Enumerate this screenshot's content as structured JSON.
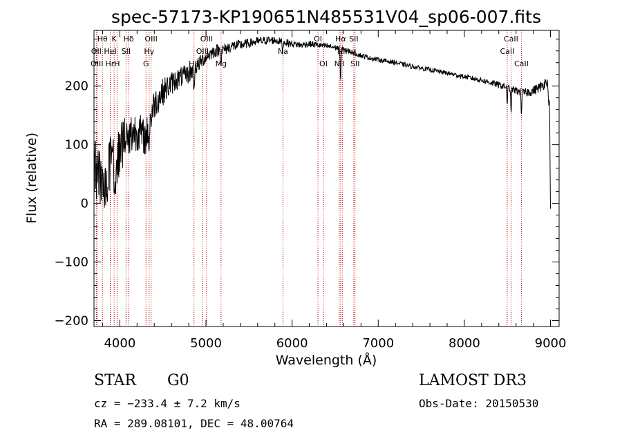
{
  "chart_data": {
    "type": "line",
    "title": "spec-57173-KP190651N485531V04_sp06-007.fits",
    "xlabel": "Wavelength (Å)",
    "ylabel": "Flux (relative)",
    "xlim": [
      3700,
      9100
    ],
    "ylim": [
      -210,
      295
    ],
    "x_ticks": [
      4000,
      5000,
      6000,
      7000,
      8000,
      9000
    ],
    "x_tick_labels": [
      "4000",
      "5000",
      "6000",
      "7000",
      "8000",
      "9000"
    ],
    "y_ticks": [
      -200,
      -100,
      0,
      100,
      200
    ],
    "y_tick_labels": [
      "−200",
      "−100",
      "0",
      "100",
      "200"
    ],
    "series": [
      {
        "name": "spectrum",
        "continuum": [
          [
            3700,
            60
          ],
          [
            3800,
            20
          ],
          [
            3850,
            40
          ],
          [
            3900,
            70
          ],
          [
            3950,
            55
          ],
          [
            4000,
            90
          ],
          [
            4100,
            115
          ],
          [
            4200,
            125
          ],
          [
            4300,
            110
          ],
          [
            4400,
            170
          ],
          [
            4500,
            190
          ],
          [
            4600,
            205
          ],
          [
            4700,
            215
          ],
          [
            4800,
            220
          ],
          [
            4900,
            235
          ],
          [
            5000,
            250
          ],
          [
            5100,
            260
          ],
          [
            5200,
            262
          ],
          [
            5300,
            268
          ],
          [
            5400,
            270
          ],
          [
            5500,
            273
          ],
          [
            5600,
            276
          ],
          [
            5700,
            278
          ],
          [
            5800,
            278
          ],
          [
            5900,
            275
          ],
          [
            6000,
            272
          ],
          [
            6100,
            270
          ],
          [
            6200,
            272
          ],
          [
            6300,
            270
          ],
          [
            6400,
            268
          ],
          [
            6500,
            266
          ],
          [
            6600,
            262
          ],
          [
            6700,
            258
          ],
          [
            6800,
            252
          ],
          [
            6900,
            248
          ],
          [
            7000,
            245
          ],
          [
            7200,
            240
          ],
          [
            7400,
            233
          ],
          [
            7600,
            228
          ],
          [
            7800,
            222
          ],
          [
            8000,
            216
          ],
          [
            8200,
            210
          ],
          [
            8400,
            202
          ],
          [
            8500,
            198
          ],
          [
            8600,
            192
          ],
          [
            8700,
            188
          ],
          [
            8800,
            192
          ],
          [
            8900,
            200
          ],
          [
            8960,
            210
          ],
          [
            8990,
            160
          ],
          [
            9000,
            0
          ]
        ],
        "absorption_features": [
          [
            4340,
            40
          ],
          [
            4861,
            45
          ],
          [
            5175,
            25
          ],
          [
            5890,
            18
          ],
          [
            6563,
            55
          ],
          [
            8498,
            30
          ],
          [
            8542,
            45
          ],
          [
            8662,
            35
          ]
        ],
        "noise_amplitude": [
          [
            3700,
            60
          ],
          [
            4000,
            45
          ],
          [
            4300,
            30
          ],
          [
            4600,
            20
          ],
          [
            5000,
            12
          ],
          [
            5500,
            8
          ],
          [
            6000,
            6
          ],
          [
            7000,
            4
          ],
          [
            8000,
            4
          ],
          [
            8500,
            6
          ],
          [
            9000,
            10
          ]
        ],
        "noise_seed": 57173
      }
    ],
    "lines": [
      {
        "wavelength": 3798,
        "labels": [
          "Hθ"
        ],
        "row": 1
      },
      {
        "wavelength": 3727,
        "labels": [
          "OII"
        ],
        "row": 2
      },
      {
        "wavelength": 3735,
        "labels": [
          "OIII"
        ],
        "row": 3
      },
      {
        "wavelength": 3889,
        "labels": [
          "Hε"
        ],
        "row": 3
      },
      {
        "wavelength": 3934,
        "labels": [
          "K"
        ],
        "row": 1
      },
      {
        "wavelength": 3968,
        "labels": [
          "H"
        ],
        "row": 3
      },
      {
        "wavelength": 3889,
        "labels": [
          "HeI"
        ],
        "row": 2
      },
      {
        "wavelength": 4072,
        "labels": [
          "SII"
        ],
        "row": 2
      },
      {
        "wavelength": 4102,
        "labels": [
          "Hδ"
        ],
        "row": 1
      },
      {
        "wavelength": 4304,
        "labels": [
          "G"
        ],
        "row": 3
      },
      {
        "wavelength": 4340,
        "labels": [
          "Hγ"
        ],
        "row": 2
      },
      {
        "wavelength": 4363,
        "labels": [
          "OIII"
        ],
        "row": 1
      },
      {
        "wavelength": 4861,
        "labels": [
          "Hβ"
        ],
        "row": 3
      },
      {
        "wavelength": 4959,
        "labels": [
          "OIII"
        ],
        "row": 2
      },
      {
        "wavelength": 5007,
        "labels": [
          "OIII"
        ],
        "row": 1
      },
      {
        "wavelength": 5175,
        "labels": [
          "Mg"
        ],
        "row": 3
      },
      {
        "wavelength": 5894,
        "labels": [
          "Na"
        ],
        "row": 2
      },
      {
        "wavelength": 6300,
        "labels": [
          "OI"
        ],
        "row": 1
      },
      {
        "wavelength": 6364,
        "labels": [
          "OI"
        ],
        "row": 3
      },
      {
        "wavelength": 6548,
        "labels": [
          "NII"
        ],
        "row": 3
      },
      {
        "wavelength": 6563,
        "labels": [
          "Hα"
        ],
        "row": 1
      },
      {
        "wavelength": 6583,
        "labels": [
          "NII"
        ],
        "row": 2
      },
      {
        "wavelength": 6716,
        "labels": [
          "SII"
        ],
        "row": 1
      },
      {
        "wavelength": 6731,
        "labels": [
          "SII"
        ],
        "row": 3
      },
      {
        "wavelength": 8498,
        "labels": [
          "CaII"
        ],
        "row": 2
      },
      {
        "wavelength": 8542,
        "labels": [
          "CaII"
        ],
        "row": 1
      },
      {
        "wavelength": 8662,
        "labels": [
          "CaII"
        ],
        "row": 3
      }
    ]
  },
  "info": {
    "object_class": "STAR",
    "subclass": "G0",
    "survey": "LAMOST DR3",
    "redshift": "cz = −233.4 ± 7.2 km/s",
    "obs_date": "Obs-Date: 20150530",
    "coords": "RA = 289.08101, DEC =  48.00764"
  },
  "colors": {
    "line_marker": "#c00000",
    "spectrum": "#000000",
    "axes": "#000000"
  }
}
